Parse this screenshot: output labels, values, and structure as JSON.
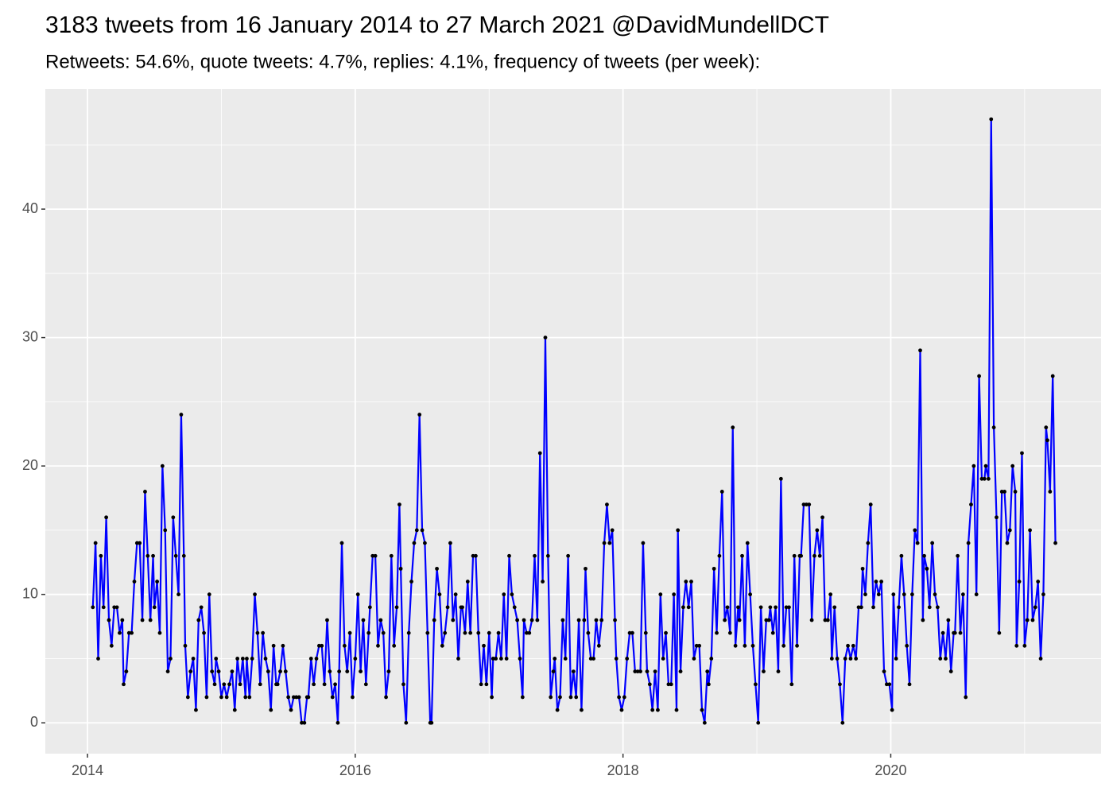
{
  "chart_data": {
    "type": "line",
    "title": "3183 tweets from 16 January 2014 to 27 March 2021 @DavidMundellDCT",
    "subtitle": "Retweets: 54.6%, quote tweets: 4.7%, replies: 4.1%, frequency of tweets (per week):",
    "color": "#0000ff",
    "point_color": "#000000",
    "xlim": [
      2013.685,
      2021.571
    ],
    "ylim": [
      -2.4,
      49.35
    ],
    "xticks": [
      2014,
      2016,
      2018,
      2020
    ],
    "yticks": [
      0,
      10,
      20,
      30,
      40
    ],
    "grid": true,
    "x": [
      2014.04,
      2014.06,
      2014.08,
      2014.1,
      2014.12,
      2014.14,
      2014.16,
      2014.18,
      2014.2,
      2014.22,
      2014.24,
      2014.26,
      2014.27,
      2014.29,
      2014.31,
      2014.33,
      2014.35,
      2014.37,
      2014.39,
      2014.41,
      2014.43,
      2014.45,
      2014.47,
      2014.49,
      2014.5,
      2014.52,
      2014.54,
      2014.56,
      2014.58,
      2014.6,
      2014.62,
      2014.64,
      2014.66,
      2014.68,
      2014.7,
      2014.72,
      2014.73,
      2014.75,
      2014.77,
      2014.79,
      2014.81,
      2014.83,
      2014.85,
      2014.87,
      2014.89,
      2014.91,
      2014.93,
      2014.95,
      2014.96,
      2014.98,
      2015,
      2015.02,
      2015.04,
      2015.06,
      2015.08,
      2015.1,
      2015.12,
      2015.14,
      2015.16,
      2015.18,
      2015.19,
      2015.21,
      2015.23,
      2015.25,
      2015.27,
      2015.29,
      2015.31,
      2015.33,
      2015.35,
      2015.37,
      2015.39,
      2015.41,
      2015.42,
      2015.44,
      2015.46,
      2015.48,
      2015.5,
      2015.52,
      2015.54,
      2015.56,
      2015.58,
      2015.6,
      2015.62,
      2015.64,
      2015.65,
      2015.67,
      2015.69,
      2015.71,
      2015.73,
      2015.75,
      2015.77,
      2015.79,
      2015.81,
      2015.83,
      2015.85,
      2015.87,
      2015.88,
      2015.9,
      2015.92,
      2015.94,
      2015.96,
      2015.98,
      2016,
      2016.02,
      2016.04,
      2016.06,
      2016.08,
      2016.1,
      2016.11,
      2016.13,
      2016.15,
      2016.17,
      2016.19,
      2016.21,
      2016.23,
      2016.25,
      2016.27,
      2016.29,
      2016.31,
      2016.33,
      2016.34,
      2016.36,
      2016.38,
      2016.4,
      2016.42,
      2016.44,
      2016.46,
      2016.48,
      2016.5,
      2016.52,
      2016.54,
      2016.56,
      2016.57,
      2016.59,
      2016.61,
      2016.63,
      2016.65,
      2016.67,
      2016.69,
      2016.71,
      2016.73,
      2016.75,
      2016.77,
      2016.79,
      2016.8,
      2016.82,
      2016.84,
      2016.86,
      2016.88,
      2016.9,
      2016.92,
      2016.94,
      2016.96,
      2016.98,
      2017,
      2017.02,
      2017.03,
      2017.05,
      2017.07,
      2017.09,
      2017.11,
      2017.13,
      2017.15,
      2017.17,
      2017.19,
      2017.21,
      2017.23,
      2017.25,
      2017.26,
      2017.28,
      2017.3,
      2017.32,
      2017.34,
      2017.36,
      2017.38,
      2017.4,
      2017.42,
      2017.44,
      2017.46,
      2017.48,
      2017.49,
      2017.51,
      2017.53,
      2017.55,
      2017.57,
      2017.59,
      2017.61,
      2017.63,
      2017.65,
      2017.67,
      2017.69,
      2017.71,
      2017.72,
      2017.74,
      2017.76,
      2017.78,
      2017.8,
      2017.82,
      2017.84,
      2017.86,
      2017.88,
      2017.9,
      2017.92,
      2017.94,
      2017.95,
      2017.97,
      2017.99,
      2018.01,
      2018.03,
      2018.05,
      2018.07,
      2018.09,
      2018.11,
      2018.13,
      2018.15,
      2018.17,
      2018.18,
      2018.2,
      2018.22,
      2018.24,
      2018.26,
      2018.28,
      2018.3,
      2018.32,
      2018.34,
      2018.36,
      2018.38,
      2018.4,
      2018.41,
      2018.43,
      2018.45,
      2018.47,
      2018.49,
      2018.51,
      2018.53,
      2018.55,
      2018.57,
      2018.59,
      2018.61,
      2018.63,
      2018.64,
      2018.66,
      2018.68,
      2018.7,
      2018.72,
      2018.74,
      2018.76,
      2018.78,
      2018.8,
      2018.82,
      2018.84,
      2018.86,
      2018.87,
      2018.89,
      2018.91,
      2018.93,
      2018.95,
      2018.97,
      2018.99,
      2019.01,
      2019.03,
      2019.05,
      2019.07,
      2019.09,
      2019.1,
      2019.12,
      2019.14,
      2019.16,
      2019.18,
      2019.2,
      2019.22,
      2019.24,
      2019.26,
      2019.28,
      2019.3,
      2019.32,
      2019.33,
      2019.35,
      2019.37,
      2019.39,
      2019.41,
      2019.43,
      2019.45,
      2019.47,
      2019.49,
      2019.51,
      2019.53,
      2019.55,
      2019.56,
      2019.58,
      2019.6,
      2019.62,
      2019.64,
      2019.66,
      2019.68,
      2019.7,
      2019.72,
      2019.74,
      2019.76,
      2019.78,
      2019.79,
      2019.81,
      2019.83,
      2019.85,
      2019.87,
      2019.89,
      2019.91,
      2019.93,
      2019.95,
      2019.97,
      2019.99,
      2020.01,
      2020.02,
      2020.04,
      2020.06,
      2020.08,
      2020.1,
      2020.12,
      2020.14,
      2020.16,
      2020.18,
      2020.2,
      2020.22,
      2020.24,
      2020.25,
      2020.27,
      2020.29,
      2020.31,
      2020.33,
      2020.35,
      2020.37,
      2020.39,
      2020.41,
      2020.43,
      2020.45,
      2020.47,
      2020.48,
      2020.5,
      2020.52,
      2020.54,
      2020.56,
      2020.58,
      2020.6,
      2020.62,
      2020.64,
      2020.66,
      2020.68,
      2020.7,
      2020.71,
      2020.73,
      2020.75,
      2020.77,
      2020.79,
      2020.81,
      2020.83,
      2020.85,
      2020.87,
      2020.89,
      2020.91,
      2020.93,
      2020.94,
      2020.96,
      2020.98,
      2021,
      2021.02,
      2021.04,
      2021.06,
      2021.08,
      2021.1,
      2021.12,
      2021.14,
      2021.16,
      2021.17,
      2021.19,
      2021.21,
      2021.23
    ],
    "values": [
      9,
      14,
      5,
      13,
      9,
      16,
      8,
      6,
      9,
      9,
      7,
      8,
      3,
      4,
      7,
      7,
      11,
      14,
      14,
      8,
      18,
      13,
      8,
      13,
      9,
      11,
      7,
      20,
      15,
      4,
      5,
      16,
      13,
      10,
      24,
      13,
      6,
      2,
      4,
      5,
      1,
      8,
      9,
      7,
      2,
      10,
      4,
      3,
      5,
      4,
      2,
      3,
      2,
      3,
      4,
      1,
      5,
      3,
      5,
      2,
      5,
      2,
      5,
      10,
      7,
      3,
      7,
      5,
      4,
      1,
      6,
      3,
      3,
      4,
      6,
      4,
      2,
      1,
      2,
      2,
      2,
      0,
      0,
      2,
      2,
      5,
      3,
      5,
      6,
      6,
      3,
      8,
      4,
      2,
      3,
      0,
      4,
      14,
      6,
      4,
      7,
      2,
      5,
      10,
      4,
      8,
      3,
      7,
      9,
      13,
      13,
      6,
      8,
      7,
      2,
      4,
      13,
      6,
      9,
      17,
      12,
      3,
      0,
      7,
      11,
      14,
      15,
      24,
      15,
      14,
      7,
      0,
      0,
      8,
      12,
      10,
      6,
      7,
      9,
      14,
      8,
      10,
      5,
      9,
      9,
      7,
      11,
      7,
      13,
      13,
      7,
      3,
      6,
      3,
      7,
      2,
      5,
      5,
      7,
      5,
      10,
      5,
      13,
      10,
      9,
      8,
      5,
      2,
      8,
      7,
      7,
      8,
      13,
      8,
      21,
      11,
      30,
      13,
      2,
      4,
      5,
      1,
      2,
      8,
      5,
      13,
      2,
      4,
      2,
      8,
      1,
      8,
      12,
      7,
      5,
      5,
      8,
      6,
      8,
      14,
      17,
      14,
      15,
      8,
      5,
      2,
      1,
      2,
      5,
      7,
      7,
      4,
      4,
      4,
      14,
      7,
      4,
      3,
      1,
      4,
      1,
      10,
      5,
      7,
      3,
      3,
      10,
      1,
      15,
      4,
      9,
      11,
      9,
      11,
      5,
      6,
      6,
      1,
      0,
      4,
      3,
      5,
      12,
      7,
      13,
      18,
      8,
      9,
      7,
      23,
      6,
      9,
      8,
      13,
      6,
      14,
      10,
      6,
      3,
      0,
      9,
      4,
      8,
      8,
      9,
      7,
      9,
      4,
      19,
      6,
      9,
      9,
      3,
      13,
      6,
      13,
      13,
      17,
      17,
      17,
      8,
      13,
      15,
      13,
      16,
      8,
      8,
      10,
      5,
      9,
      5,
      3,
      0,
      5,
      6,
      5,
      6,
      5,
      9,
      9,
      12,
      10,
      14,
      17,
      9,
      11,
      10,
      11,
      4,
      3,
      3,
      1,
      10,
      5,
      9,
      13,
      10,
      6,
      3,
      10,
      15,
      14,
      29,
      8,
      13,
      12,
      9,
      14,
      10,
      9,
      5,
      7,
      5,
      8,
      4,
      7,
      7,
      13,
      7,
      10,
      2,
      14,
      17,
      20,
      10,
      27,
      19,
      19,
      20,
      19,
      47,
      23,
      16,
      7,
      18,
      18,
      14,
      15,
      20,
      18,
      6,
      11,
      21,
      6,
      8,
      15,
      8,
      9,
      11,
      5,
      10,
      23,
      22,
      18,
      27,
      14
    ]
  }
}
